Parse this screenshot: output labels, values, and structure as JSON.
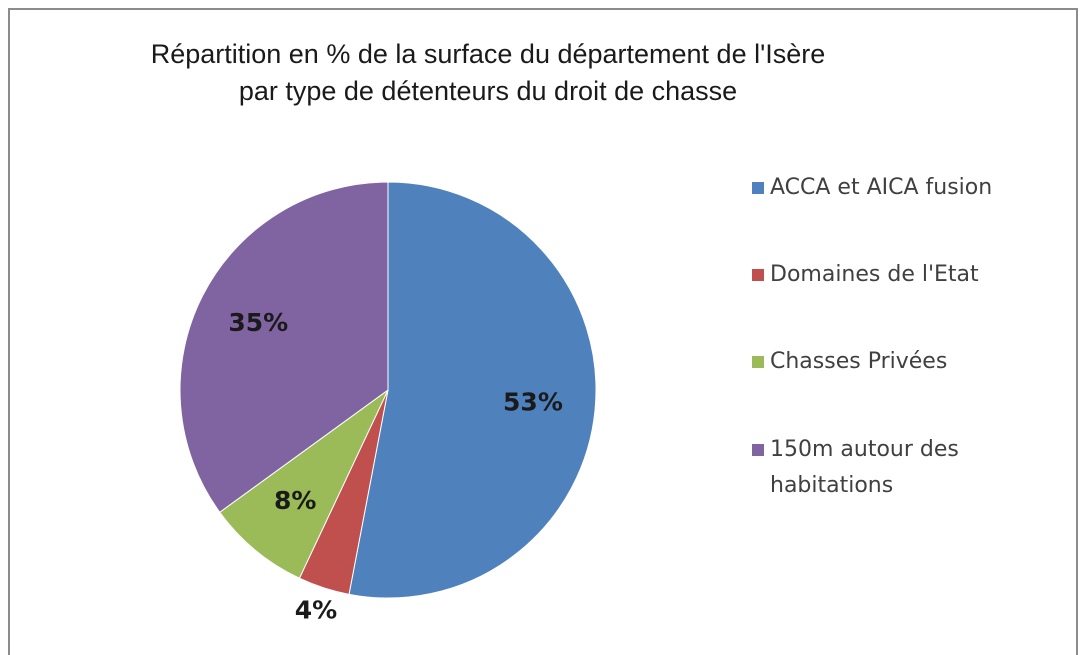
{
  "chart_data": {
    "type": "pie",
    "title": "Répartition en % de la surface du département de l'Isère\npar type de détenteurs du droit de chasse",
    "categories": [
      "ACCA et AICA fusion",
      "Domaines de l'Etat",
      "Chasses Privées",
      "150m autour des habitations"
    ],
    "values": [
      53,
      4,
      8,
      35
    ],
    "value_labels": [
      "53%",
      "4%",
      "8%",
      "35%"
    ],
    "colors": [
      "#4f81bd",
      "#c0504d",
      "#9bbb59",
      "#8064a2"
    ],
    "legend": "right"
  }
}
